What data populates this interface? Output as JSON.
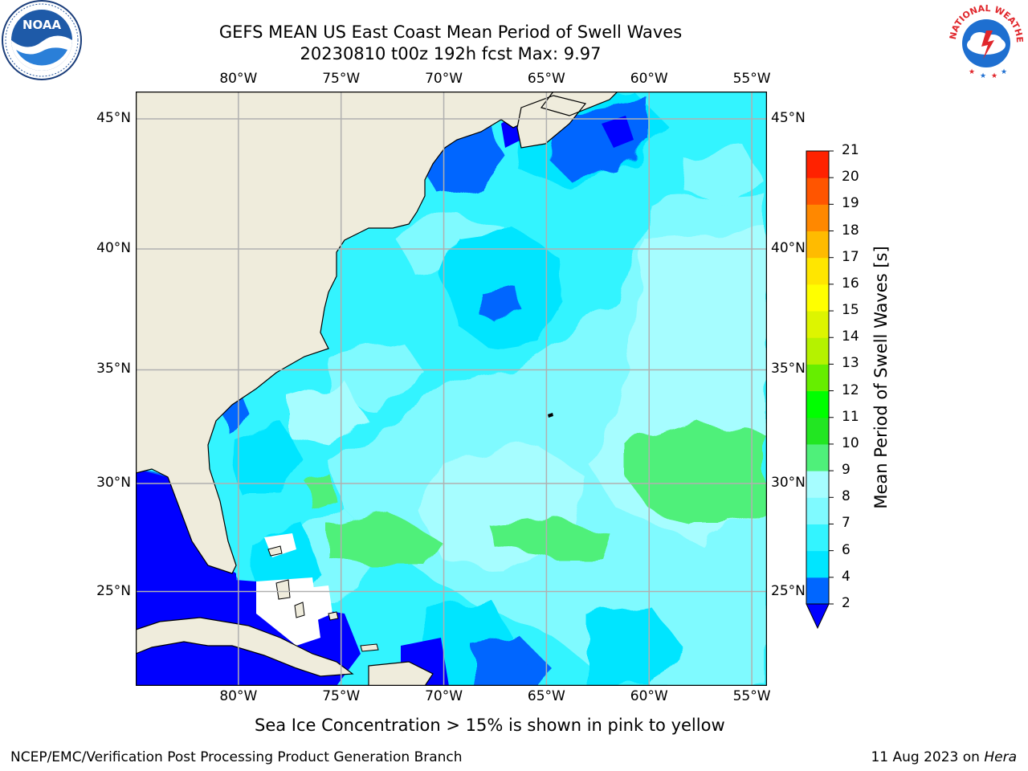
{
  "header": {
    "title": "GEFS MEAN US East Coast Mean Period of Swell Waves",
    "subtitle": "20230810 t00z 192h fcst   Max: 9.97"
  },
  "logos": {
    "left": {
      "name": "noaa-logo",
      "text": "NOAA"
    },
    "right": {
      "name": "nws-logo",
      "text": "NATIONAL WEATHER SERVICE"
    }
  },
  "map": {
    "lon_ticks": [
      "80°W",
      "75°W",
      "70°W",
      "65°W",
      "60°W",
      "55°W"
    ],
    "lat_ticks": [
      "45°N",
      "40°N",
      "35°N",
      "30°N",
      "25°N"
    ],
    "lon_values": [
      -80,
      -75,
      -70,
      -65,
      -60,
      -55
    ],
    "lat_values": [
      45,
      40,
      35,
      30,
      25
    ],
    "extent": {
      "lon_min": -85,
      "lon_max": -54.3,
      "lat_min": 20.5,
      "lat_max": 46
    },
    "colors": {
      "land": "#efecdc",
      "ocean_base": "#33f4ff",
      "grid": "#b0b0b0"
    }
  },
  "colorbar": {
    "label": "Mean Period of Swell Waves [s]",
    "ticks": [
      "2",
      "4",
      "6",
      "7",
      "8",
      "9",
      "10",
      "11",
      "12",
      "13",
      "14",
      "15",
      "16",
      "17",
      "18",
      "19",
      "20",
      "21"
    ],
    "colors": [
      "#0066ff",
      "#00e5ff",
      "#33f4ff",
      "#7ffaff",
      "#a6fdff",
      "#4ff07a",
      "#22e622",
      "#00ff00",
      "#66ee00",
      "#b5f200",
      "#ddf500",
      "#ffff00",
      "#ffe600",
      "#ffbb00",
      "#ff8800",
      "#ff5500",
      "#ff2200",
      "#ff0000"
    ],
    "under_color": "#0000ff"
  },
  "note": "Sea Ice Concentration > 15% is shown in pink to yellow",
  "footer": {
    "left": "NCEP/EMC/Verification Post Processing Product Generation Branch",
    "right_prefix": "11 Aug 2023 on ",
    "right_host": "Hera"
  }
}
